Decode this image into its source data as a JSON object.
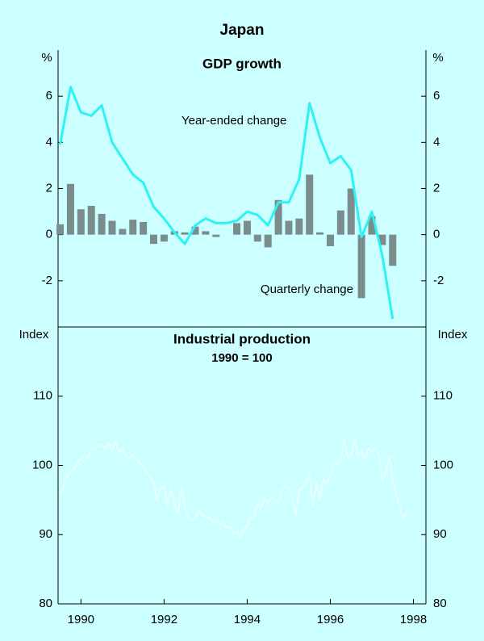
{
  "title": "Japan",
  "chart_data": [
    {
      "type": "combo",
      "title": "GDP growth",
      "y_label": "%",
      "y2_label": "%",
      "x": [
        1989.5,
        1989.75,
        1990,
        1990.25,
        1990.5,
        1990.75,
        1991,
        1991.25,
        1991.5,
        1991.75,
        1992,
        1992.25,
        1992.5,
        1992.75,
        1993,
        1993.25,
        1993.5,
        1993.75,
        1994,
        1994.25,
        1994.5,
        1994.75,
        1995,
        1995.25,
        1995.5,
        1995.75,
        1996,
        1996.25,
        1996.5,
        1996.75,
        1997,
        1997.25,
        1997.5
      ],
      "series": [
        {
          "name": "Year-ended change",
          "type": "line",
          "color": "#2ef2f5",
          "values": [
            3.9,
            6.4,
            5.3,
            5.15,
            5.6,
            4.0,
            3.3,
            2.6,
            2.25,
            1.2,
            0.7,
            0.1,
            -0.4,
            0.4,
            0.7,
            0.5,
            0.5,
            0.6,
            1.0,
            0.85,
            0.4,
            1.4,
            1.4,
            2.4,
            5.7,
            4.2,
            3.1,
            3.4,
            2.8,
            -0.1,
            1.0,
            -0.9,
            -3.65
          ]
        },
        {
          "name": "Quarterly change",
          "type": "bar",
          "color": "#7b8c8c",
          "values": [
            0.45,
            2.2,
            1.1,
            1.25,
            0.9,
            0.6,
            0.25,
            0.65,
            0.55,
            -0.4,
            -0.3,
            0.15,
            0.1,
            0.35,
            0.15,
            -0.1,
            0.0,
            0.5,
            0.6,
            -0.3,
            -0.55,
            1.5,
            0.6,
            0.7,
            2.6,
            0.1,
            -0.5,
            1.05,
            2.0,
            -2.75,
            0.8,
            -0.45,
            -1.35
          ]
        }
      ],
      "xlim": [
        1989.45,
        1998.3
      ],
      "ylim": [
        -4,
        8
      ],
      "yticks": [
        -2,
        0,
        2,
        4,
        6
      ],
      "y2lim": [
        -4,
        8
      ],
      "y2ticks": [
        -2,
        0,
        2,
        4,
        6
      ]
    },
    {
      "type": "line",
      "title": "Industrial production",
      "subtitle": "1990 = 100",
      "y_label": "Index",
      "y2_label": "Index",
      "x": [
        1989.5,
        1989.58,
        1989.67,
        1989.75,
        1989.83,
        1989.92,
        1990,
        1990.08,
        1990.17,
        1990.25,
        1990.33,
        1990.42,
        1990.5,
        1990.58,
        1990.67,
        1990.75,
        1990.83,
        1990.92,
        1991,
        1991.08,
        1991.17,
        1991.25,
        1991.33,
        1991.42,
        1991.5,
        1991.58,
        1991.67,
        1991.75,
        1991.83,
        1991.92,
        1992,
        1992.08,
        1992.17,
        1992.25,
        1992.33,
        1992.42,
        1992.5,
        1992.58,
        1992.67,
        1992.75,
        1992.83,
        1992.92,
        1993,
        1993.08,
        1993.17,
        1993.25,
        1993.33,
        1993.42,
        1993.5,
        1993.58,
        1993.67,
        1993.75,
        1993.83,
        1993.92,
        1994,
        1994.08,
        1994.17,
        1994.25,
        1994.33,
        1994.42,
        1994.5,
        1994.58,
        1994.67,
        1994.75,
        1994.83,
        1994.92,
        1995,
        1995.08,
        1995.17,
        1995.25,
        1995.33,
        1995.42,
        1995.5,
        1995.58,
        1995.67,
        1995.75,
        1995.83,
        1995.92,
        1996,
        1996.08,
        1996.17,
        1996.25,
        1996.33,
        1996.42,
        1996.5,
        1996.58,
        1996.67,
        1996.75,
        1996.83,
        1996.92,
        1997,
        1997.08,
        1997.17,
        1997.25,
        1997.33,
        1997.42,
        1997.5,
        1997.58,
        1997.67,
        1997.75,
        1997.83
      ],
      "series": [
        {
          "name": "Industrial production",
          "color": "#e6ffff",
          "values": [
            96,
            97,
            98.5,
            99,
            99.5,
            100.5,
            101,
            101.5,
            101,
            102.5,
            102.3,
            102.8,
            103,
            102.5,
            103.2,
            102,
            103.5,
            101.8,
            102.5,
            101.3,
            101,
            101.5,
            101,
            100.2,
            99.8,
            99,
            98.3,
            97.5,
            95,
            96.8,
            97,
            94,
            96.5,
            94.5,
            93,
            97,
            94,
            92.5,
            92,
            92.5,
            93.5,
            92.8,
            92.5,
            92.5,
            91.8,
            92,
            91.5,
            91.8,
            91,
            91.2,
            90.2,
            90.5,
            89.5,
            91,
            91.2,
            92.5,
            92.5,
            94.5,
            93.8,
            95.2,
            94.5,
            95.5,
            95,
            94.5,
            96.5,
            97,
            96.8,
            95.5,
            92.8,
            96.5,
            96.8,
            97.5,
            99,
            94,
            97.5,
            95,
            98,
            97.5,
            98.5,
            100.5,
            100.2,
            100.5,
            104,
            101,
            101.5,
            103.5,
            101.5,
            102,
            101,
            102.5,
            102,
            102.5,
            101.5,
            97.5,
            99,
            101.3,
            98,
            96,
            94,
            92.2,
            93.2
          ]
        }
      ],
      "xlim": [
        1989.45,
        1998.3
      ],
      "xticks": [
        1990,
        1992,
        1994,
        1996,
        1998
      ],
      "ylim": [
        80,
        120
      ],
      "yticks": [
        80,
        90,
        100,
        110
      ],
      "y2lim": [
        80,
        120
      ],
      "y2ticks": [
        80,
        90,
        100,
        110
      ]
    }
  ]
}
